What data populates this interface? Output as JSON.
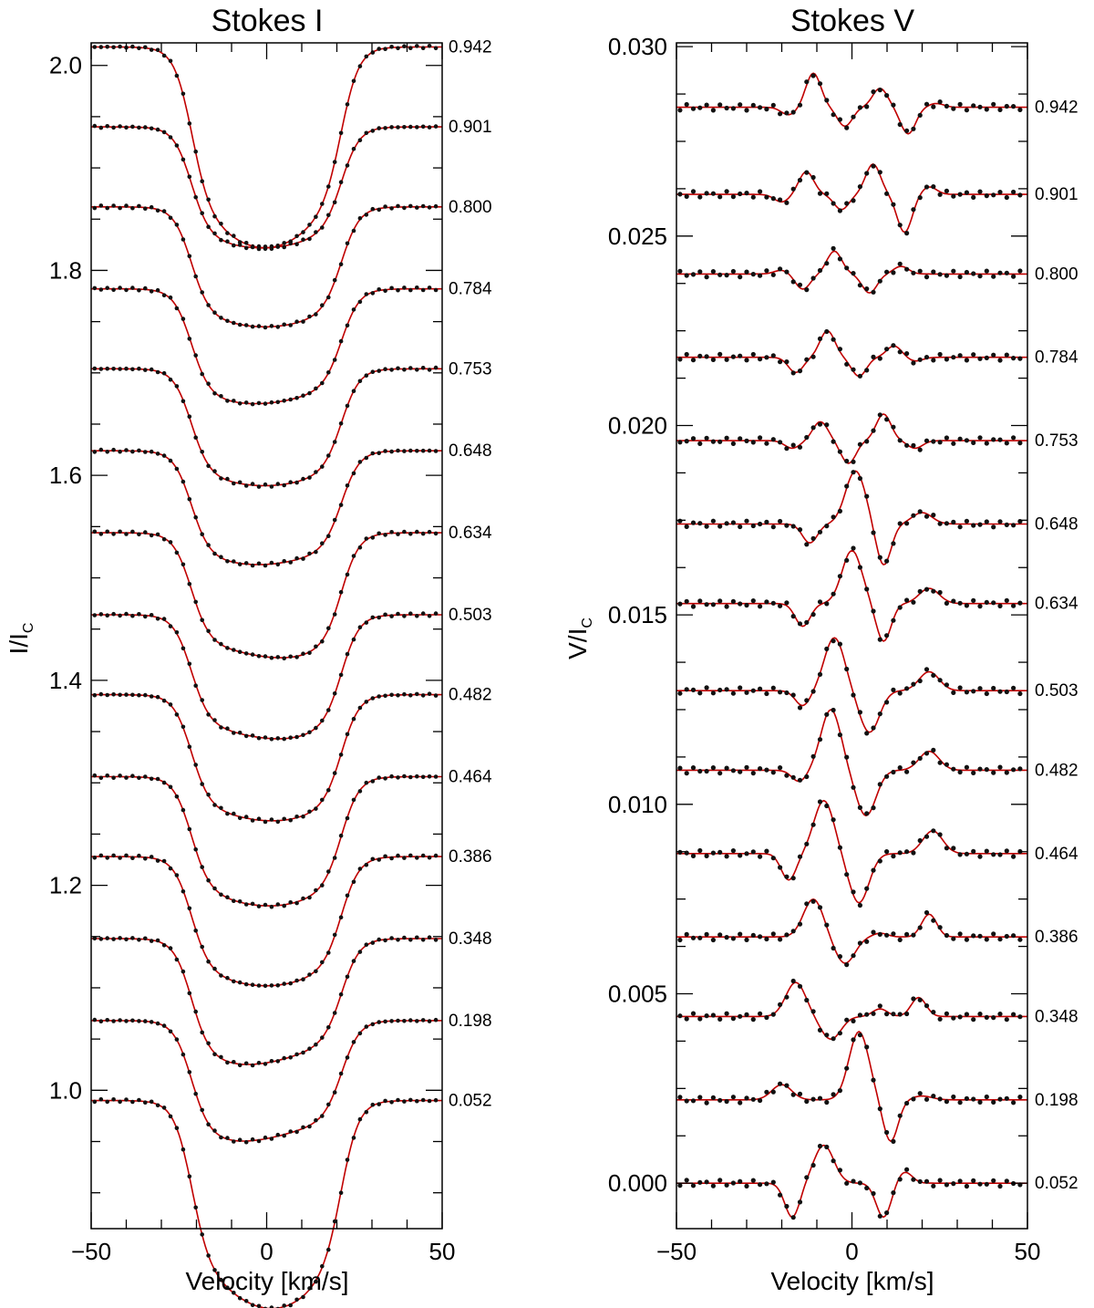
{
  "chart_data": [
    {
      "type": "line",
      "title": "Stokes I",
      "xlabel": "Velocity [km/s]",
      "ylabel": "I/I",
      "ylabel_sub": "C",
      "xlim": [
        -50,
        50
      ],
      "ylim": [
        0.865,
        2.022
      ],
      "xticks": [
        -50,
        0,
        50
      ],
      "yticks": [
        1.0,
        1.2,
        1.4,
        1.6,
        1.8,
        2.0
      ],
      "ytick_labels": [
        "1.0",
        "1.2",
        "1.4",
        "1.6",
        "1.8",
        "2.0"
      ],
      "series_colors": {
        "observed": "#111111",
        "model": "#c00000"
      },
      "series": [
        {
          "phase": "0.052",
          "offset": 0.99,
          "min_v": 2,
          "min_depth": 0.125
        },
        {
          "phase": "0.198",
          "offset": 1.068,
          "min_v": -7,
          "min_depth": 0.04
        },
        {
          "phase": "0.348",
          "offset": 1.148,
          "min_v": -5,
          "min_depth": 0.045
        },
        {
          "phase": "0.386",
          "offset": 1.228,
          "min_v": 1,
          "min_depth": 0.048
        },
        {
          "phase": "0.464",
          "offset": 1.306,
          "min_v": 2,
          "min_depth": 0.048
        },
        {
          "phase": "0.482",
          "offset": 1.386,
          "min_v": 3,
          "min_depth": 0.045
        },
        {
          "phase": "0.503",
          "offset": 1.464,
          "min_v": 5,
          "min_depth": 0.043
        },
        {
          "phase": "0.634",
          "offset": 1.544,
          "min_v": 6,
          "min_depth": 0.044
        },
        {
          "phase": "0.648",
          "offset": 1.624,
          "min_v": -1,
          "min_depth": 0.033
        },
        {
          "phase": "0.753",
          "offset": 1.704,
          "min_v": 1,
          "min_depth": 0.036
        },
        {
          "phase": "0.784",
          "offset": 1.782,
          "min_v": -2,
          "min_depth": 0.034
        },
        {
          "phase": "0.800",
          "offset": 1.862,
          "min_v": 1,
          "min_depth": 0.039
        },
        {
          "phase": "0.901",
          "offset": 1.94,
          "min_v": 0,
          "min_depth": 0.04
        },
        {
          "phase": "0.942",
          "offset": 2.018,
          "min_v": 0,
          "min_depth": 0.118
        }
      ]
    },
    {
      "type": "line",
      "title": "Stokes V",
      "xlabel": "Velocity [km/s]",
      "ylabel": "V/I",
      "ylabel_sub": "C",
      "xlim": [
        -50,
        50
      ],
      "ylim": [
        -0.0012,
        0.0301
      ],
      "xticks": [
        -50,
        0,
        50
      ],
      "yticks": [
        0.0,
        0.005,
        0.01,
        0.015,
        0.02,
        0.025,
        0.03
      ],
      "ytick_labels": [
        "0.000",
        "0.005",
        "0.010",
        "0.015",
        "0.020",
        "0.025",
        "0.030"
      ],
      "series_colors": {
        "observed": "#111111",
        "model": "#c00000"
      },
      "series": [
        {
          "phase": "0.052",
          "offset": 0.0,
          "features": [
            [
              -17,
              -0.0009,
              3
            ],
            [
              -8,
              0.001,
              4
            ],
            [
              9,
              -0.0009,
              3
            ],
            [
              15,
              0.0003,
              3
            ]
          ]
        },
        {
          "phase": "0.198",
          "offset": 0.0022,
          "features": [
            [
              -20,
              0.0004,
              4
            ],
            [
              2,
              0.0018,
              4
            ],
            [
              11,
              -0.0011,
              3
            ],
            [
              20,
              0.0001,
              4
            ]
          ]
        },
        {
          "phase": "0.348",
          "offset": 0.0044,
          "features": [
            [
              -16,
              0.0009,
              4
            ],
            [
              -6,
              -0.0006,
              4
            ],
            [
              8,
              0.0002,
              3
            ],
            [
              19,
              0.0005,
              3
            ]
          ]
        },
        {
          "phase": "0.386",
          "offset": 0.0065,
          "features": [
            [
              -11,
              0.001,
              4
            ],
            [
              -2,
              -0.0007,
              4
            ],
            [
              8,
              0.0001,
              3
            ],
            [
              22,
              0.0006,
              3
            ]
          ]
        },
        {
          "phase": "0.464",
          "offset": 0.0087,
          "features": [
            [
              -18,
              -0.0007,
              3
            ],
            [
              -8,
              0.0014,
              4
            ],
            [
              2,
              -0.0013,
              4
            ],
            [
              23,
              0.0006,
              4
            ]
          ]
        },
        {
          "phase": "0.482",
          "offset": 0.0109,
          "features": [
            [
              -15,
              -0.0003,
              3
            ],
            [
              -6,
              0.0016,
              4
            ],
            [
              4,
              -0.0012,
              4
            ],
            [
              22,
              0.0005,
              4
            ]
          ]
        },
        {
          "phase": "0.503",
          "offset": 0.013,
          "features": [
            [
              -14,
              -0.0004,
              3
            ],
            [
              -5,
              0.0014,
              4
            ],
            [
              5,
              -0.0011,
              4
            ],
            [
              22,
              0.0005,
              4
            ]
          ]
        },
        {
          "phase": "0.634",
          "offset": 0.0153,
          "features": [
            [
              -14,
              -0.0006,
              3
            ],
            [
              0,
              0.0014,
              4
            ],
            [
              9,
              -0.001,
              3
            ],
            [
              22,
              0.0004,
              4
            ]
          ]
        },
        {
          "phase": "0.648",
          "offset": 0.0174,
          "features": [
            [
              -12,
              -0.0005,
              3
            ],
            [
              1,
              0.0014,
              4
            ],
            [
              9,
              -0.0011,
              3
            ],
            [
              20,
              0.0003,
              4
            ]
          ]
        },
        {
          "phase": "0.753",
          "offset": 0.0196,
          "features": [
            [
              -17,
              -0.0002,
              3
            ],
            [
              -9,
              0.0005,
              3
            ],
            [
              -1,
              -0.0006,
              3
            ],
            [
              9,
              0.0007,
              3
            ],
            [
              18,
              -0.0002,
              3
            ]
          ]
        },
        {
          "phase": "0.784",
          "offset": 0.0218,
          "features": [
            [
              -16,
              -0.0004,
              3
            ],
            [
              -7,
              0.0007,
              3
            ],
            [
              2,
              -0.0005,
              3
            ],
            [
              12,
              0.0003,
              3
            ],
            [
              18,
              -0.0001,
              3
            ]
          ]
        },
        {
          "phase": "0.800",
          "offset": 0.024,
          "features": [
            [
              -20,
              0.0001,
              3
            ],
            [
              -14,
              -0.0004,
              3
            ],
            [
              -5,
              0.0006,
              3
            ],
            [
              5,
              -0.0005,
              3
            ],
            [
              14,
              0.0002,
              3
            ]
          ]
        },
        {
          "phase": "0.901",
          "offset": 0.0261,
          "features": [
            [
              -20,
              -0.0002,
              3
            ],
            [
              -13,
              0.0006,
              3
            ],
            [
              -3,
              -0.0004,
              3
            ],
            [
              6,
              0.0008,
              3
            ],
            [
              15,
              -0.001,
              3
            ],
            [
              22,
              0.0002,
              3
            ]
          ]
        },
        {
          "phase": "0.942",
          "offset": 0.0284,
          "features": [
            [
              -18,
              -0.0002,
              3
            ],
            [
              -11,
              0.0009,
              3
            ],
            [
              -2,
              -0.0005,
              3
            ],
            [
              8,
              0.0005,
              3
            ],
            [
              16,
              -0.0007,
              3
            ],
            [
              24,
              0.0001,
              3
            ]
          ]
        }
      ]
    }
  ]
}
